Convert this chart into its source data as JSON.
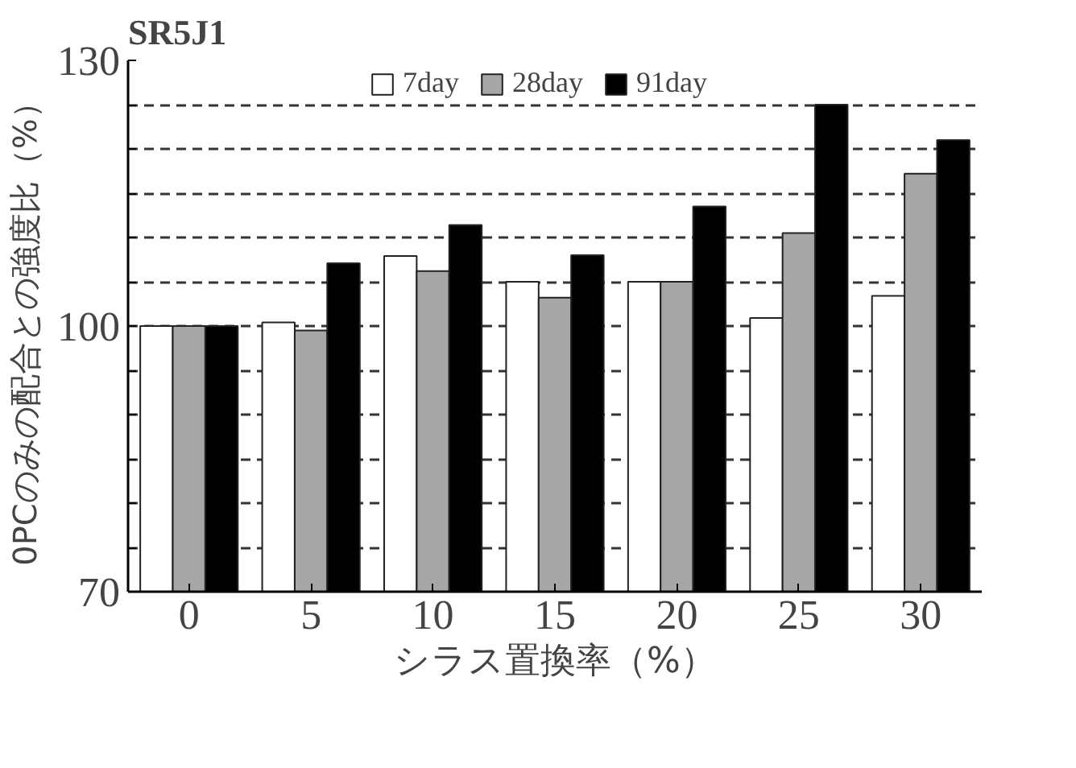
{
  "chart_data": {
    "type": "bar",
    "title": "SR5J1",
    "xlabel": "シラス置換率（%）",
    "ylabel": "0PCのみの配合との強度比（%）",
    "categories": [
      "0",
      "5",
      "10",
      "15",
      "20",
      "25",
      "30"
    ],
    "series": [
      {
        "name": "7day",
        "color": "#ffffff",
        "values": [
          100,
          100.4,
          107.9,
          105.0,
          105.0,
          100.9,
          103.4
        ]
      },
      {
        "name": "28day",
        "color": "#a6a6a6",
        "values": [
          100,
          99.5,
          106.2,
          103.2,
          105.0,
          110.5,
          117.2
        ]
      },
      {
        "name": "91day",
        "color": "#000000",
        "values": [
          100,
          107.1,
          111.4,
          108.0,
          113.5,
          125.0,
          121.0
        ]
      }
    ],
    "ylim": [
      70,
      130
    ],
    "yticks": [
      70,
      {
        "value": 75,
        "label": null
      },
      {
        "value": 80,
        "label": null
      },
      {
        "value": 85,
        "label": null
      },
      {
        "value": 90,
        "label": null
      },
      {
        "value": 95,
        "label": null
      },
      100,
      {
        "value": 105,
        "label": null
      },
      {
        "value": 110,
        "label": null
      },
      {
        "value": 115,
        "label": null
      },
      {
        "value": 120,
        "label": null
      },
      {
        "value": 125,
        "label": null
      },
      130
    ],
    "grid": "y",
    "legend": "top right"
  }
}
